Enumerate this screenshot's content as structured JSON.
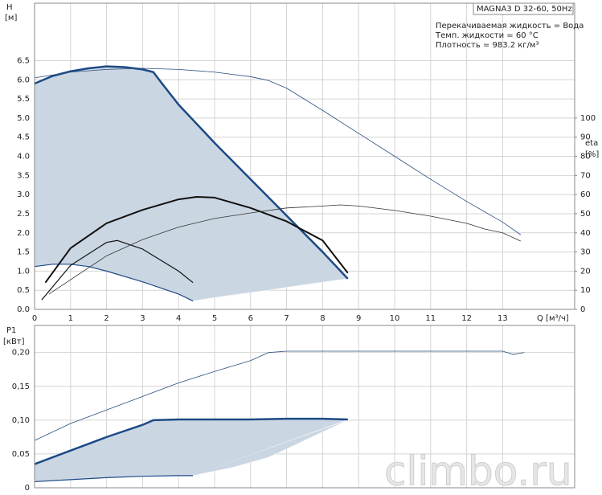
{
  "chart_data": [
    {
      "type": "line",
      "y_label": "H",
      "y_unit": "[м]",
      "y2_label": "eta",
      "y2_unit": "[%]",
      "x_label": "Q [м³/ч]",
      "box_title": "MAGNA3 D 32-60, 50Hz",
      "annotations": [
        "Перекачиваемая жидкость = Вода",
        "Темп. жидкости = 60 °C",
        "Плотность = 983.2 кг/м³"
      ],
      "xlim": [
        0,
        15
      ],
      "xticks": [
        0,
        1,
        2,
        3,
        4,
        5,
        6,
        7,
        8,
        9,
        10,
        11,
        12,
        13
      ],
      "ylim": [
        0,
        8
      ],
      "yticks": [
        {
          "value": 0,
          "label": "0.0"
        },
        0.5,
        {
          "value": 1,
          "label": "1.0"
        },
        1.5,
        {
          "value": 2,
          "label": "2.0"
        },
        2.5,
        {
          "value": 3,
          "label": "3.0"
        },
        3.5,
        {
          "value": 4,
          "label": "4.0"
        },
        4.5,
        {
          "value": 5,
          "label": "5.0"
        },
        5.5,
        {
          "value": 6,
          "label": "6.0"
        },
        6.5
      ],
      "y2lim": [
        0,
        160
      ],
      "y2ticks": [
        0,
        10,
        20,
        30,
        40,
        50,
        60,
        70,
        80,
        90,
        100
      ],
      "grid": true,
      "region": {
        "color": "#cbd6e3",
        "x": [
          4.4,
          5.5,
          6.5,
          7.5,
          8.7
        ],
        "values": [
          0.22,
          0.38,
          0.5,
          0.65,
          0.8
        ]
      },
      "series": [
        {
          "color": "#1d4a86",
          "width": 2.5,
          "x": [
            0,
            0.5,
            1,
            1.5,
            2,
            2.5,
            3,
            3.3,
            3.5,
            4,
            5,
            6,
            7,
            8,
            8.7
          ],
          "values": [
            5.9,
            6.1,
            6.22,
            6.3,
            6.35,
            6.33,
            6.27,
            6.2,
            5.95,
            5.35,
            4.35,
            3.4,
            2.45,
            1.5,
            0.8
          ]
        },
        {
          "color": "#1d4a86",
          "width": 1.2,
          "x": [
            0,
            0.5,
            1,
            1.5,
            2,
            3,
            4,
            4.4
          ],
          "values": [
            1.12,
            1.18,
            1.18,
            1.12,
            1.0,
            0.72,
            0.4,
            0.22
          ]
        },
        {
          "color": "#2b4f7e",
          "width": 0.8,
          "x": [
            0,
            1,
            2,
            3,
            4,
            5,
            6,
            6.5,
            7,
            8,
            9,
            10,
            11,
            12,
            13,
            13.5
          ],
          "values": [
            6.05,
            6.2,
            6.27,
            6.3,
            6.27,
            6.2,
            6.08,
            5.98,
            5.78,
            5.2,
            4.6,
            4.0,
            3.4,
            2.82,
            2.28,
            1.95
          ]
        },
        {
          "color": "#111111",
          "width": 2,
          "axis": "y2",
          "x": [
            0.3,
            1,
            2,
            3,
            4,
            4.5,
            5,
            6,
            7,
            8,
            8.7
          ],
          "values": [
            14,
            32,
            45,
            52,
            57.5,
            58.8,
            58.4,
            53,
            46,
            36,
            19
          ]
        },
        {
          "color": "#111111",
          "width": 1.2,
          "axis": "y2",
          "x": [
            0.2,
            1,
            2,
            2.3,
            3,
            4,
            4.4
          ],
          "values": [
            5,
            23,
            35,
            36,
            31.5,
            20,
            14
          ]
        },
        {
          "color": "#333333",
          "width": 0.8,
          "axis": "y2",
          "x": [
            0.4,
            2,
            3,
            4,
            5,
            6,
            7,
            8,
            8.5,
            9,
            10,
            11,
            12,
            12.5,
            13,
            13.5
          ],
          "values": [
            8,
            28,
            36.5,
            43,
            47.5,
            50.4,
            53,
            54,
            54.6,
            54,
            51.7,
            48.7,
            45,
            42,
            40,
            35.7
          ]
        }
      ]
    },
    {
      "type": "line",
      "y_label": "P1",
      "y_unit": "[кВт]",
      "xlim": [
        0,
        15
      ],
      "ylim": [
        0,
        0.24
      ],
      "yticks": [
        0,
        {
          "value": 0.05,
          "label": "0,05"
        },
        {
          "value": 0.1,
          "label": "0,10"
        },
        {
          "value": 0.15,
          "label": "0,15"
        },
        {
          "value": 0.2,
          "label": "0,20"
        }
      ],
      "grid": true,
      "region": {
        "color": "#cbd6e3",
        "x": [
          4.4,
          5.5,
          6.5,
          7.5,
          8.7
        ],
        "values": [
          0.018,
          0.03,
          0.045,
          0.07,
          0.1
        ]
      },
      "series": [
        {
          "color": "#1d4a86",
          "width": 2.5,
          "x": [
            0,
            1,
            2,
            3,
            3.3,
            4,
            5,
            6,
            7,
            8,
            8.7
          ],
          "values": [
            0.035,
            0.055,
            0.075,
            0.093,
            0.1,
            0.101,
            0.101,
            0.101,
            0.102,
            0.102,
            0.101
          ]
        },
        {
          "color": "#1d4a86",
          "width": 1.2,
          "x": [
            0,
            1,
            2,
            3,
            4,
            4.4
          ],
          "values": [
            0.009,
            0.012,
            0.015,
            0.017,
            0.018,
            0.018
          ]
        },
        {
          "color": "#2b4f7e",
          "width": 0.8,
          "x": [
            0,
            1,
            2,
            3,
            4,
            5,
            6,
            6.5,
            7,
            8,
            9,
            10,
            11,
            12,
            13,
            13.3,
            13.6
          ],
          "values": [
            0.07,
            0.095,
            0.115,
            0.135,
            0.155,
            0.172,
            0.188,
            0.2,
            0.202,
            0.202,
            0.202,
            0.202,
            0.202,
            0.202,
            0.202,
            0.197,
            0.2
          ]
        }
      ]
    }
  ],
  "watermark": "climbo.ru"
}
